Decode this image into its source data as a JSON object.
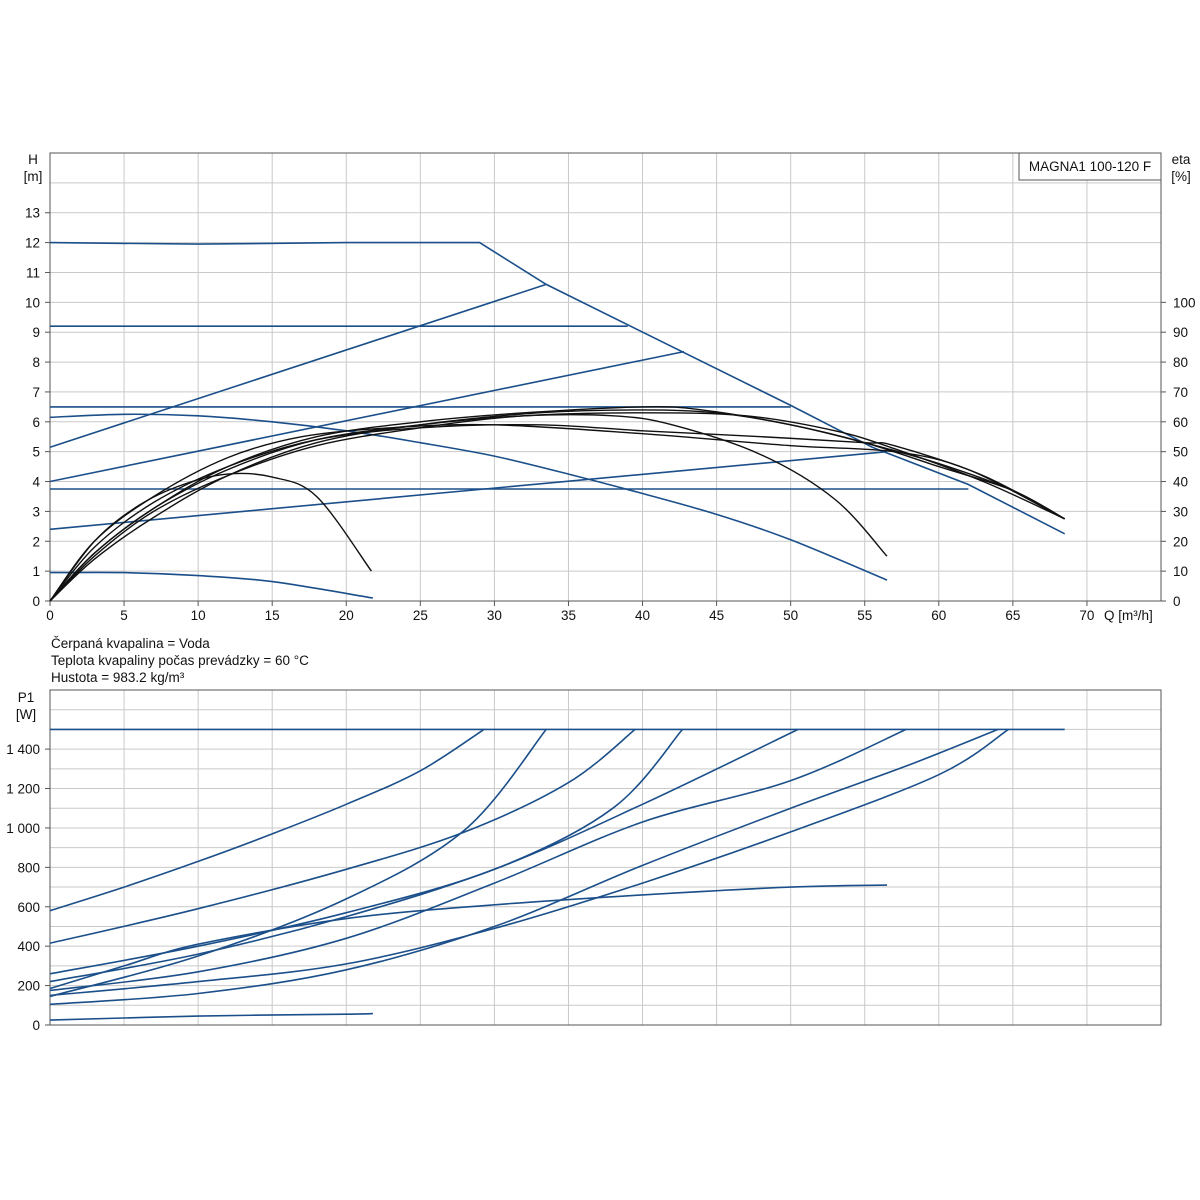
{
  "chart_data": [
    {
      "type": "line",
      "title": "MAGNA1 100-120 F",
      "xlabel": "Q [m³/h]",
      "ylabel": "H",
      "ylabel_unit": "[m]",
      "y2label": "eta",
      "y2label_unit": "[%]",
      "xlim": [
        0,
        75
      ],
      "ylim": [
        0,
        15
      ],
      "y2lim": [
        0,
        150
      ],
      "grid": true,
      "xticks": [
        0,
        5,
        10,
        15,
        20,
        25,
        30,
        35,
        40,
        45,
        50,
        55,
        60,
        65,
        70
      ],
      "yticks": [
        0,
        1,
        2,
        3,
        4,
        5,
        6,
        7,
        8,
        9,
        10,
        11,
        12,
        13
      ],
      "y2ticks": [
        0,
        10,
        20,
        30,
        40,
        50,
        60,
        70,
        80,
        90,
        100
      ],
      "head_series": [
        {
          "color": "#1b4f8a",
          "points": [
            [
              0,
              12
            ],
            [
              10,
              11.95
            ],
            [
              20,
              12
            ],
            [
              29,
              12
            ],
            [
              33.5,
              10.6
            ],
            [
              50,
              6.55
            ],
            [
              55.5,
              5.15
            ],
            [
              62,
              3.9
            ],
            [
              68.5,
              2.25
            ]
          ]
        },
        {
          "color": "#1b4f8a",
          "points": [
            [
              0,
              9.2
            ],
            [
              39,
              9.2
            ]
          ]
        },
        {
          "color": "#1b4f8a",
          "points": [
            [
              0,
              6.5
            ],
            [
              50,
              6.5
            ]
          ]
        },
        {
          "color": "#1b4f8a",
          "points": [
            [
              0,
              3.75
            ],
            [
              62,
              3.75
            ]
          ]
        },
        {
          "color": "#1b4f8a",
          "points": [
            [
              0,
              5.15
            ],
            [
              33.5,
              10.6
            ]
          ]
        },
        {
          "color": "#1b4f8a",
          "points": [
            [
              0,
              4.0
            ],
            [
              42.8,
              8.35
            ]
          ]
        },
        {
          "color": "#1b4f8a",
          "points": [
            [
              0,
              2.4
            ],
            [
              56.5,
              5.0
            ]
          ]
        },
        {
          "color": "#1b4f8a",
          "points": [
            [
              0,
              6.15
            ],
            [
              5,
              6.25
            ],
            [
              10,
              6.2
            ],
            [
              15,
              6.0
            ],
            [
              20,
              5.7
            ],
            [
              25,
              5.3
            ],
            [
              30,
              4.85
            ],
            [
              35,
              4.25
            ],
            [
              40,
              3.6
            ],
            [
              45,
              2.9
            ],
            [
              50,
              2.05
            ],
            [
              56.5,
              0.7
            ]
          ]
        },
        {
          "color": "#1b4f8a",
          "points": [
            [
              0,
              0.95
            ],
            [
              5,
              0.95
            ],
            [
              10,
              0.85
            ],
            [
              15,
              0.65
            ],
            [
              21.8,
              0.1
            ]
          ]
        }
      ],
      "eta_series": [
        {
          "color": "#111111",
          "points": [
            [
              0,
              0
            ],
            [
              3,
              20
            ],
            [
              6,
              32
            ],
            [
              9,
              39
            ],
            [
              12,
              42.5
            ],
            [
              15,
              41.5
            ],
            [
              18,
              35
            ],
            [
              21.7,
              10
            ]
          ]
        },
        {
          "color": "#111111",
          "points": [
            [
              0,
              0
            ],
            [
              3,
              20
            ],
            [
              7,
              35
            ],
            [
              12,
              48
            ],
            [
              17,
              55
            ],
            [
              23,
              58
            ],
            [
              30,
              59
            ],
            [
              40,
              56
            ],
            [
              50,
              52
            ],
            [
              57,
              50
            ],
            [
              62,
              44
            ],
            [
              68.5,
              27.5
            ]
          ]
        },
        {
          "color": "#111111",
          "points": [
            [
              0,
              0
            ],
            [
              3,
              18
            ],
            [
              7,
              33
            ],
            [
              12,
              45
            ],
            [
              18,
              54
            ],
            [
              25,
              58
            ],
            [
              33,
              59
            ],
            [
              40,
              57
            ],
            [
              48,
              55
            ],
            [
              55,
              53
            ],
            [
              57,
              52
            ],
            [
              63,
              42
            ],
            [
              68.5,
              27.5
            ]
          ]
        },
        {
          "color": "#111111",
          "points": [
            [
              0,
              0
            ],
            [
              3,
              15
            ],
            [
              7,
              30
            ],
            [
              12,
              42
            ],
            [
              18,
              52
            ],
            [
              25,
              58
            ],
            [
              32,
              62
            ],
            [
              40,
              63
            ],
            [
              47,
              62
            ],
            [
              53,
              57
            ],
            [
              57,
              51
            ],
            [
              63,
              40
            ],
            [
              68.5,
              27.5
            ]
          ]
        },
        {
          "color": "#111111",
          "points": [
            [
              0,
              0
            ],
            [
              3,
              16
            ],
            [
              7,
              31
            ],
            [
              12,
              44
            ],
            [
              18,
              54
            ],
            [
              25,
              59
            ],
            [
              32,
              62
            ],
            [
              38,
              62
            ],
            [
              42,
              59
            ],
            [
              48,
              49
            ],
            [
              53,
              34
            ],
            [
              56.5,
              15
            ]
          ]
        },
        {
          "color": "#111111",
          "points": [
            [
              0,
              0
            ],
            [
              3,
              16
            ],
            [
              7,
              31
            ],
            [
              12,
              45
            ],
            [
              18,
              55
            ],
            [
              25,
              60
            ],
            [
              32,
              63
            ],
            [
              40,
              65
            ],
            [
              44,
              64
            ],
            [
              50,
              59
            ],
            [
              55,
              53
            ],
            [
              60,
              45
            ],
            [
              65,
              37
            ],
            [
              68.5,
              27.5
            ]
          ]
        },
        {
          "color": "#111111",
          "points": [
            [
              0,
              0
            ],
            [
              3,
              14
            ],
            [
              7,
              28
            ],
            [
              12,
              42
            ],
            [
              18,
              53
            ],
            [
              25,
              59
            ],
            [
              33,
              63
            ],
            [
              40,
              64
            ],
            [
              45,
              63
            ],
            [
              50,
              59
            ],
            [
              55,
              53
            ],
            [
              60,
              46
            ],
            [
              65,
              37
            ],
            [
              68.5,
              27.5
            ]
          ]
        }
      ]
    },
    {
      "type": "line",
      "ylabel": "P1",
      "ylabel_unit": "[W]",
      "xlim": [
        0,
        75
      ],
      "ylim": [
        0,
        1700
      ],
      "grid": true,
      "yticks": [
        0,
        200,
        400,
        600,
        800,
        1000,
        1200,
        1400
      ],
      "ytick_labels": [
        "0",
        "200",
        "400",
        "600",
        "800",
        "1 000",
        "1 200",
        "1 400"
      ],
      "series": [
        {
          "color": "#1b4f8a",
          "points": [
            [
              0,
              1500
            ],
            [
              68.5,
              1500
            ]
          ]
        },
        {
          "color": "#1b4f8a",
          "points": [
            [
              0,
              580
            ],
            [
              5,
              700
            ],
            [
              10,
              830
            ],
            [
              15,
              970
            ],
            [
              20,
              1120
            ],
            [
              25,
              1290
            ],
            [
              29.3,
              1500
            ]
          ]
        },
        {
          "color": "#1b4f8a",
          "points": [
            [
              0,
              415
            ],
            [
              10,
              590
            ],
            [
              20,
              790
            ],
            [
              28,
              980
            ],
            [
              35,
              1230
            ],
            [
              39.5,
              1500
            ]
          ]
        },
        {
          "color": "#1b4f8a",
          "points": [
            [
              0,
              145
            ],
            [
              10,
              350
            ],
            [
              20,
              640
            ],
            [
              28,
              990
            ],
            [
              33.5,
              1500
            ]
          ]
        },
        {
          "color": "#1b4f8a",
          "points": [
            [
              0,
              260
            ],
            [
              10,
              400
            ],
            [
              20,
              570
            ],
            [
              30,
              790
            ],
            [
              38,
              1100
            ],
            [
              42.7,
              1500
            ]
          ]
        },
        {
          "color": "#1b4f8a",
          "points": [
            [
              0,
              220
            ],
            [
              10,
              360
            ],
            [
              20,
              550
            ],
            [
              30,
              790
            ],
            [
              40,
              1120
            ],
            [
              50.5,
              1500
            ]
          ]
        },
        {
          "color": "#1b4f8a",
          "points": [
            [
              0,
              175
            ],
            [
              10,
              270
            ],
            [
              20,
              440
            ],
            [
              30,
              720
            ],
            [
              40,
              1030
            ],
            [
              50,
              1240
            ],
            [
              57.8,
              1500
            ]
          ]
        },
        {
          "color": "#1b4f8a",
          "points": [
            [
              0,
              150
            ],
            [
              10,
              220
            ],
            [
              20,
              310
            ],
            [
              30,
              490
            ],
            [
              40,
              720
            ],
            [
              50,
              980
            ],
            [
              60,
              1270
            ],
            [
              64.7,
              1500
            ]
          ]
        },
        {
          "color": "#1b4f8a",
          "points": [
            [
              0,
              105
            ],
            [
              10,
              160
            ],
            [
              20,
              280
            ],
            [
              30,
              500
            ],
            [
              40,
              810
            ],
            [
              50,
              1100
            ],
            [
              58,
              1320
            ],
            [
              64,
              1500
            ]
          ]
        },
        {
          "color": "#1b4f8a",
          "points": [
            [
              0,
              185
            ],
            [
              5,
              300
            ],
            [
              10,
              410
            ],
            [
              20,
              540
            ],
            [
              30,
              610
            ],
            [
              40,
              660
            ],
            [
              50,
              700
            ],
            [
              56.5,
              710
            ]
          ]
        },
        {
          "color": "#1b4f8a",
          "points": [
            [
              0,
              25
            ],
            [
              10,
              45
            ],
            [
              20,
              55
            ],
            [
              21.8,
              58
            ]
          ]
        }
      ]
    }
  ],
  "info_lines": [
    "Čerpaná kvapalina = Voda",
    "Teplota kvapaliny počas prevádzky = 60 °C",
    "Hustota = 983.2 kg/m³"
  ]
}
